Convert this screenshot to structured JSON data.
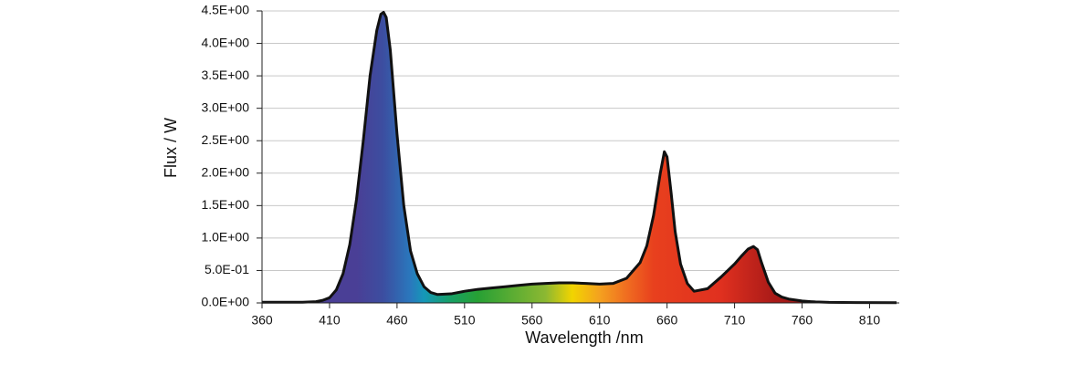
{
  "chart_data": {
    "type": "area",
    "x_label": "Wavelength /nm",
    "y_label": "Flux / W",
    "x": [
      360,
      370,
      380,
      390,
      400,
      405,
      410,
      415,
      420,
      425,
      430,
      435,
      440,
      445,
      448,
      450,
      452,
      455,
      460,
      465,
      470,
      475,
      480,
      485,
      490,
      500,
      510,
      520,
      530,
      540,
      550,
      560,
      570,
      580,
      590,
      600,
      610,
      620,
      630,
      640,
      645,
      650,
      655,
      658,
      660,
      663,
      666,
      670,
      675,
      680,
      690,
      700,
      710,
      715,
      720,
      724,
      727,
      730,
      735,
      740,
      745,
      750,
      760,
      770,
      780,
      800,
      830
    ],
    "values": [
      0.01,
      0.01,
      0.01,
      0.01,
      0.02,
      0.04,
      0.08,
      0.2,
      0.45,
      0.9,
      1.6,
      2.5,
      3.5,
      4.2,
      4.45,
      4.48,
      4.4,
      3.9,
      2.6,
      1.5,
      0.8,
      0.45,
      0.25,
      0.16,
      0.13,
      0.14,
      0.18,
      0.21,
      0.23,
      0.25,
      0.27,
      0.29,
      0.3,
      0.31,
      0.31,
      0.3,
      0.29,
      0.3,
      0.38,
      0.62,
      0.88,
      1.35,
      2.0,
      2.33,
      2.25,
      1.7,
      1.1,
      0.6,
      0.3,
      0.18,
      0.22,
      0.4,
      0.6,
      0.72,
      0.83,
      0.87,
      0.82,
      0.62,
      0.32,
      0.15,
      0.09,
      0.06,
      0.03,
      0.015,
      0.008,
      0.005,
      0.003
    ],
    "line_color": "#111111",
    "xlim": [
      360,
      832
    ],
    "xticks": [
      360,
      410,
      460,
      510,
      560,
      610,
      660,
      710,
      760,
      810
    ],
    "ylim": [
      0,
      4.5
    ],
    "yticks": [
      {
        "value": 0,
        "label": "0.0E+00"
      },
      {
        "value": 0.5,
        "label": "5.0E-01"
      },
      {
        "value": 1,
        "label": "1.0E+00"
      },
      {
        "value": 1.5,
        "label": "1.5E+00"
      },
      {
        "value": 2,
        "label": "2.0E+00"
      },
      {
        "value": 2.5,
        "label": "2.5E+00"
      },
      {
        "value": 3,
        "label": "3.0E+00"
      },
      {
        "value": 3.5,
        "label": "3.5E+00"
      },
      {
        "value": 4,
        "label": "4.0E+00"
      },
      {
        "value": 4.5,
        "label": "4.5E+00"
      }
    ],
    "grid": true
  }
}
